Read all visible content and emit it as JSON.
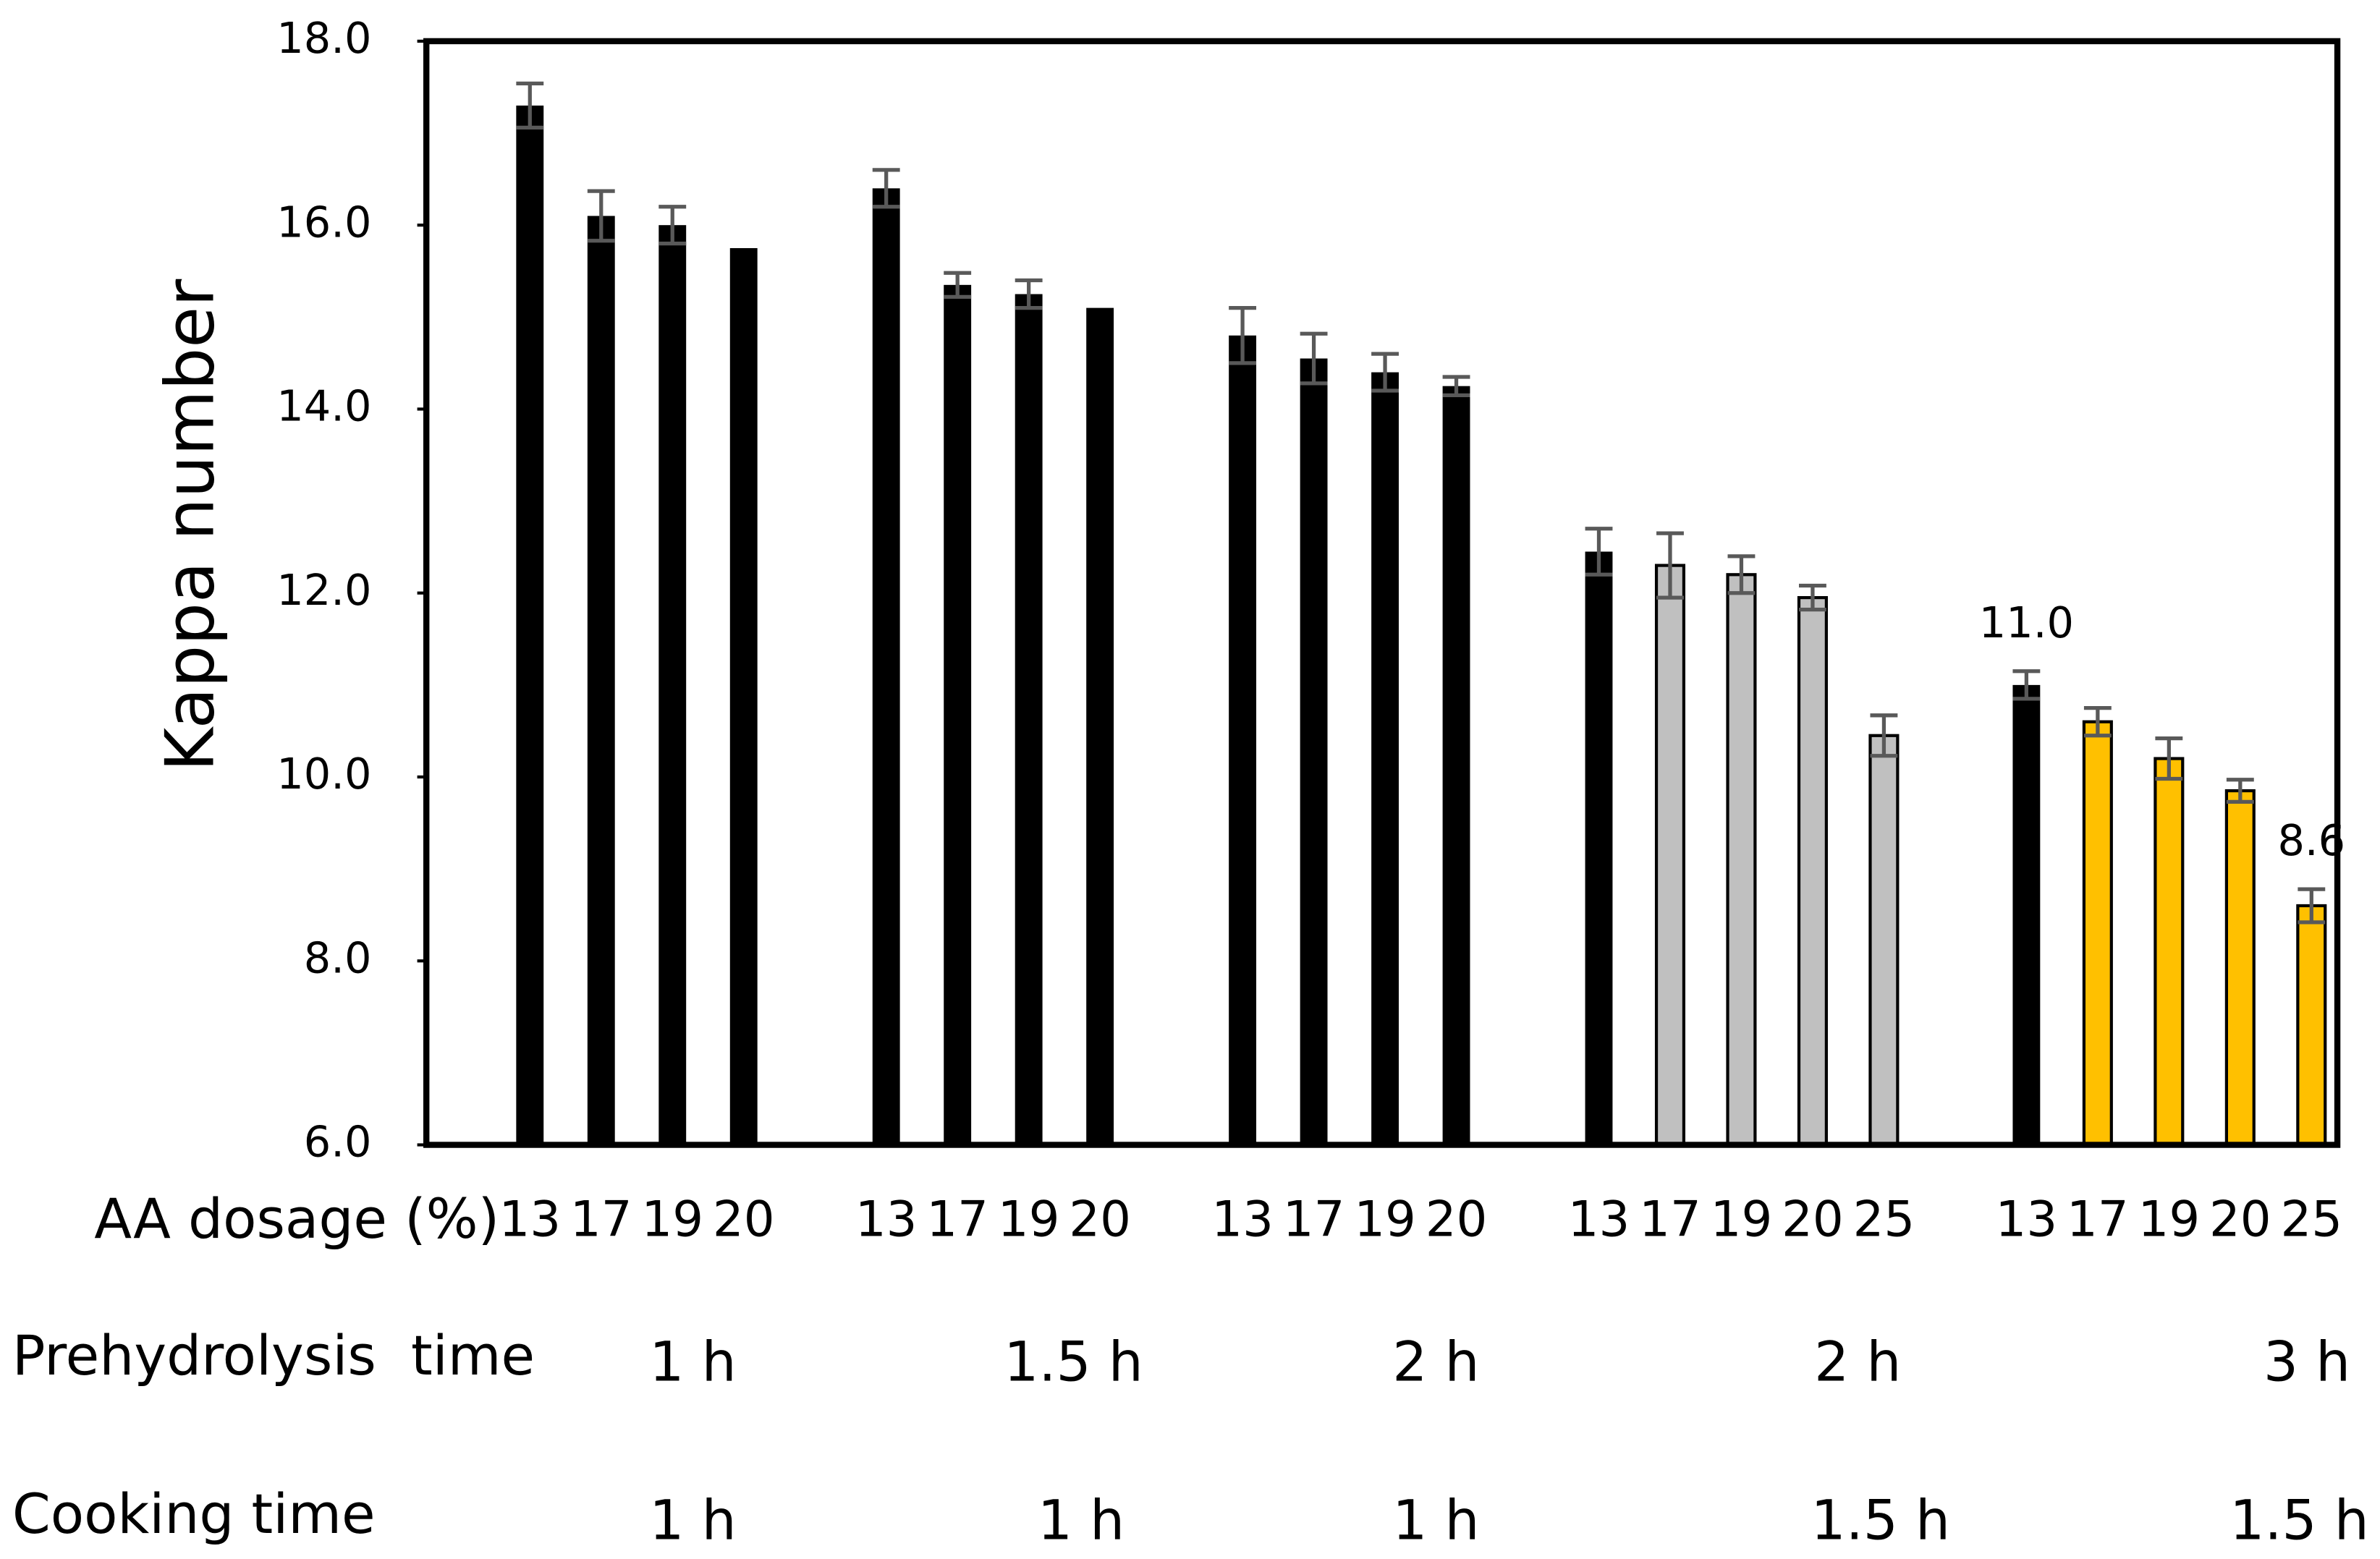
{
  "chart_data": {
    "type": "bar",
    "y_label": "Kappa number",
    "x_label": "AA dosage (%)",
    "categories": [
      "13",
      "17",
      "19",
      "20",
      null,
      "13",
      "17",
      "19",
      "20",
      null,
      "13",
      "17",
      "19",
      "20",
      null,
      "13",
      "17",
      "19",
      "20",
      "25",
      null,
      "13",
      "17",
      "19",
      "20",
      "25"
    ],
    "values": [
      17.3,
      16.1,
      16.0,
      15.75,
      null,
      16.4,
      15.35,
      15.25,
      15.1,
      null,
      14.8,
      14.55,
      14.4,
      14.25,
      null,
      12.45,
      12.3,
      12.2,
      11.95,
      10.45,
      null,
      11.0,
      10.6,
      10.2,
      9.85,
      8.6
    ],
    "errors": [
      0.24,
      0.27,
      0.2,
      null,
      null,
      0.2,
      0.13,
      0.15,
      null,
      null,
      0.3,
      0.27,
      0.2,
      0.1,
      null,
      0.25,
      0.35,
      0.2,
      0.13,
      0.22,
      null,
      0.15,
      0.15,
      0.22,
      0.12,
      0.18
    ],
    "value_labels": [
      null,
      null,
      null,
      null,
      null,
      null,
      null,
      null,
      null,
      null,
      null,
      null,
      null,
      null,
      null,
      null,
      null,
      null,
      null,
      null,
      null,
      "11.0",
      null,
      null,
      null,
      "8.6"
    ],
    "colors": [
      "#000000",
      "#000000",
      "#000000",
      "#000000",
      null,
      "#000000",
      "#000000",
      "#000000",
      "#000000",
      null,
      "#000000",
      "#000000",
      "#000000",
      "#000000",
      null,
      "#000000",
      "#c0c0c0",
      "#c0c0c0",
      "#c0c0c0",
      "#c0c0c0",
      null,
      "#000000",
      "#ffc000",
      "#ffc000",
      "#ffc000",
      "#ffc000"
    ],
    "error_color": "#595959",
    "ylim": [
      6,
      18
    ],
    "yticks": [
      {
        "value": 6,
        "label": "6.0"
      },
      {
        "value": 8,
        "label": "8.0"
      },
      {
        "value": 10,
        "label": "10.0"
      },
      {
        "value": 12,
        "label": "12.0"
      },
      {
        "value": 14,
        "label": "14.0"
      },
      {
        "value": 16,
        "label": "16.0"
      },
      {
        "value": 18,
        "label": "18.0"
      }
    ],
    "group_rows": [
      {
        "name": "Prehydrolysis  time",
        "labels": [
          "1 h",
          "1.5 h",
          "2 h",
          "2 h",
          "3 h"
        ]
      },
      {
        "name": "Cooking time",
        "labels": [
          "1 h",
          "1 h",
          "1 h",
          "1.5 h",
          "1.5 h"
        ]
      }
    ]
  }
}
